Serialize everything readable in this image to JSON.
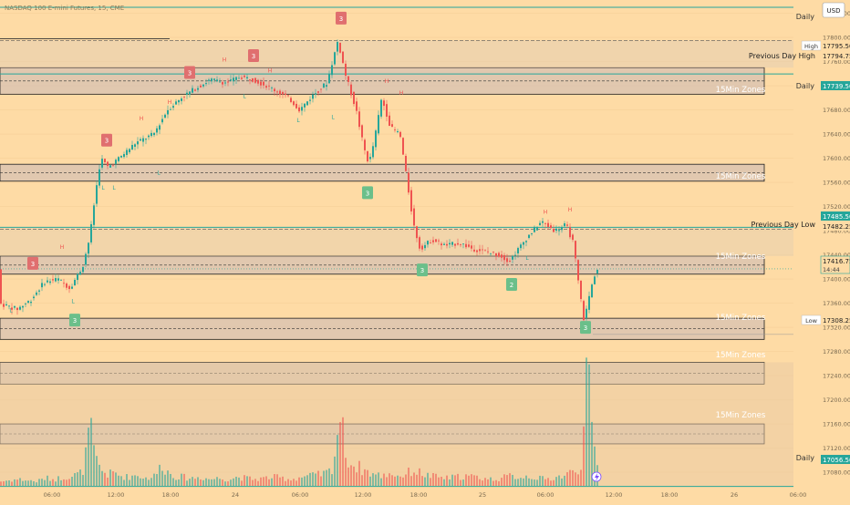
{
  "header": {
    "title": "NASDAQ 100 E-mini Futures, 15, CME"
  },
  "currency_button": "USD",
  "colors": {
    "background": "#fedba5",
    "up": "#26a69a",
    "down": "#ef5350",
    "daily": "#26a69a",
    "zone_fill": "#c9b8b8",
    "zone_border": "#1e1e1e",
    "text": "#b8860b",
    "badge_green": "#6bbf8a",
    "badge_red": "#e06f6f"
  },
  "labels": {
    "daily_top": "Daily",
    "daily_mid": "Daily",
    "daily_bottom": "Daily",
    "high_tag": "High",
    "low_tag": "Low",
    "pdh": "Previous Day High",
    "pdl": "Previous Day Low",
    "zones": [
      "15Min Zones",
      "15Min Zones",
      "15Min Zones",
      "15Min Zones",
      "15Min Zones",
      "15Min Zones"
    ]
  },
  "price_tags": {
    "high": "17795.50",
    "pdh": "17794.75",
    "daily_mid": "17739.50",
    "p17485": "17485.50",
    "pdl": "17482.25",
    "last": "17416.75",
    "countdown": "14:44",
    "low": "17308.25",
    "daily_bottom": "17056.50"
  },
  "chart_data": {
    "type": "candlestick",
    "title": "NASDAQ 100 E-mini Futures, 15, CME",
    "y_ticks": [
      "17840.00",
      "17800.00",
      "17760.00",
      "17720.00",
      "17680.00",
      "17640.00",
      "17600.00",
      "17560.00",
      "17520.00",
      "17480.00",
      "17440.00",
      "17400.00",
      "17360.00",
      "17320.00",
      "17280.00",
      "17240.00",
      "17200.00",
      "17160.00",
      "17120.00",
      "17080.00"
    ],
    "x_ticks": [
      "06:00",
      "12:00",
      "18:00",
      "24",
      "06:00",
      "12:00",
      "18:00",
      "25",
      "06:00",
      "12:00",
      "18:00",
      "26",
      "06:00"
    ],
    "ylim": [
      17050,
      17862
    ],
    "levels": {
      "daily_top": 17850,
      "daily_mid": 17739.5,
      "daily_bottom": 17056.5,
      "previous_day_high": 17794.75,
      "previous_day_low": 17482.25,
      "high": 17795.5,
      "low": 17308.25,
      "last": 17416.75
    },
    "zones": [
      {
        "label": "15Min Zones",
        "low": 17706,
        "high": 17750
      },
      {
        "label": "15Min Zones",
        "low": 17562,
        "high": 17590
      },
      {
        "label": "15Min Zones",
        "low": 17408,
        "high": 17438
      },
      {
        "label": "15Min Zones",
        "low": 17300,
        "high": 17335
      },
      {
        "label": "15Min Zones",
        "low": 17226,
        "high": 17262
      },
      {
        "label": "15Min Zones",
        "low": 17127,
        "high": 17160
      }
    ],
    "close_path": [
      [
        0,
        17360
      ],
      [
        20,
        17350
      ],
      [
        35,
        17365
      ],
      [
        50,
        17395
      ],
      [
        65,
        17400
      ],
      [
        78,
        17385
      ],
      [
        92,
        17420
      ],
      [
        100,
        17470
      ],
      [
        106,
        17540
      ],
      [
        112,
        17600
      ],
      [
        120,
        17585
      ],
      [
        132,
        17600
      ],
      [
        150,
        17625
      ],
      [
        170,
        17640
      ],
      [
        185,
        17680
      ],
      [
        200,
        17700
      ],
      [
        215,
        17715
      ],
      [
        232,
        17730
      ],
      [
        250,
        17725
      ],
      [
        265,
        17735
      ],
      [
        280,
        17730
      ],
      [
        300,
        17715
      ],
      [
        318,
        17700
      ],
      [
        330,
        17680
      ],
      [
        345,
        17705
      ],
      [
        360,
        17725
      ],
      [
        372,
        17795
      ],
      [
        380,
        17740
      ],
      [
        392,
        17680
      ],
      [
        400,
        17620
      ],
      [
        406,
        17590
      ],
      [
        412,
        17630
      ],
      [
        420,
        17700
      ],
      [
        430,
        17650
      ],
      [
        440,
        17640
      ],
      [
        448,
        17560
      ],
      [
        455,
        17490
      ],
      [
        462,
        17450
      ],
      [
        475,
        17465
      ],
      [
        490,
        17455
      ],
      [
        505,
        17460
      ],
      [
        520,
        17450
      ],
      [
        535,
        17445
      ],
      [
        548,
        17440
      ],
      [
        560,
        17430
      ],
      [
        570,
        17450
      ],
      [
        580,
        17470
      ],
      [
        595,
        17495
      ],
      [
        610,
        17480
      ],
      [
        622,
        17490
      ],
      [
        630,
        17460
      ],
      [
        636,
        17390
      ],
      [
        642,
        17330
      ],
      [
        648,
        17375
      ],
      [
        655,
        17416
      ]
    ],
    "volume_profile": [
      [
        0,
        4
      ],
      [
        10,
        5
      ],
      [
        20,
        6
      ],
      [
        30,
        5
      ],
      [
        40,
        4
      ],
      [
        50,
        7
      ],
      [
        60,
        6
      ],
      [
        70,
        8
      ],
      [
        80,
        9
      ],
      [
        90,
        12
      ],
      [
        95,
        30
      ],
      [
        98,
        55
      ],
      [
        101,
        40
      ],
      [
        104,
        25
      ],
      [
        108,
        18
      ],
      [
        112,
        14
      ],
      [
        118,
        10
      ],
      [
        125,
        12
      ],
      [
        132,
        9
      ],
      [
        140,
        8
      ],
      [
        150,
        10
      ],
      [
        160,
        7
      ],
      [
        170,
        9
      ],
      [
        178,
        20
      ],
      [
        182,
        14
      ],
      [
        190,
        9
      ],
      [
        200,
        8
      ],
      [
        210,
        7
      ],
      [
        220,
        8
      ],
      [
        230,
        6
      ],
      [
        240,
        7
      ],
      [
        250,
        6
      ],
      [
        260,
        8
      ],
      [
        270,
        7
      ],
      [
        280,
        6
      ],
      [
        290,
        7
      ],
      [
        300,
        8
      ],
      [
        310,
        7
      ],
      [
        320,
        6
      ],
      [
        330,
        8
      ],
      [
        340,
        9
      ],
      [
        350,
        10
      ],
      [
        360,
        12
      ],
      [
        366,
        20
      ],
      [
        372,
        68
      ],
      [
        378,
        35
      ],
      [
        384,
        20
      ],
      [
        390,
        18
      ],
      [
        398,
        15
      ],
      [
        405,
        12
      ],
      [
        412,
        10
      ],
      [
        420,
        9
      ],
      [
        428,
        12
      ],
      [
        436,
        9
      ],
      [
        444,
        10
      ],
      [
        452,
        14
      ],
      [
        460,
        12
      ],
      [
        470,
        9
      ],
      [
        480,
        8
      ],
      [
        490,
        7
      ],
      [
        500,
        8
      ],
      [
        510,
        9
      ],
      [
        520,
        8
      ],
      [
        530,
        7
      ],
      [
        540,
        6
      ],
      [
        550,
        7
      ],
      [
        560,
        9
      ],
      [
        570,
        8
      ],
      [
        580,
        9
      ],
      [
        590,
        7
      ],
      [
        600,
        6
      ],
      [
        610,
        8
      ],
      [
        618,
        9
      ],
      [
        626,
        12
      ],
      [
        632,
        14
      ],
      [
        638,
        22
      ],
      [
        644,
        100
      ],
      [
        650,
        40
      ],
      [
        655,
        22
      ]
    ],
    "badges": [
      {
        "text": "3",
        "color": "green",
        "x": 82,
        "price": 17332
      },
      {
        "text": "3",
        "color": "red",
        "x": 117,
        "price": 17630
      },
      {
        "text": "3",
        "color": "red",
        "x": 36,
        "price": 17426
      },
      {
        "text": "3",
        "color": "red",
        "x": 208,
        "price": 17742
      },
      {
        "text": "3",
        "color": "red",
        "x": 278,
        "price": 17770
      },
      {
        "text": "3",
        "color": "red",
        "x": 374,
        "price": 17832
      },
      {
        "text": "3",
        "color": "green",
        "x": 403,
        "price": 17543
      },
      {
        "text": "3",
        "color": "green",
        "x": 463,
        "price": 17415
      },
      {
        "text": "2",
        "color": "green",
        "x": 561,
        "price": 17391
      },
      {
        "text": "3",
        "color": "green",
        "x": 642,
        "price": 17320
      }
    ],
    "hl_marks": [
      {
        "text": "H",
        "x": 68,
        "price": 17450
      },
      {
        "text": "H",
        "x": 155,
        "price": 17663
      },
      {
        "text": "H",
        "x": 186,
        "price": 17690
      },
      {
        "text": "H",
        "x": 246,
        "price": 17760
      },
      {
        "text": "H",
        "x": 296,
        "price": 17742
      },
      {
        "text": "H",
        "x": 424,
        "price": 17725
      },
      {
        "text": "H",
        "x": 440,
        "price": 17705
      },
      {
        "text": "H",
        "x": 598,
        "price": 17508
      },
      {
        "text": "H",
        "x": 625,
        "price": 17512
      },
      {
        "text": "L",
        "x": 12,
        "price": 17345
      },
      {
        "text": "L",
        "x": 80,
        "price": 17360
      },
      {
        "text": "L",
        "x": 113,
        "price": 17548
      },
      {
        "text": "L",
        "x": 125,
        "price": 17548
      },
      {
        "text": "L",
        "x": 174,
        "price": 17573
      },
      {
        "text": "L",
        "x": 268,
        "price": 17700
      },
      {
        "text": "L",
        "x": 327,
        "price": 17660
      },
      {
        "text": "L",
        "x": 365,
        "price": 17665
      },
      {
        "text": "L",
        "x": 578,
        "price": 17432
      }
    ]
  }
}
